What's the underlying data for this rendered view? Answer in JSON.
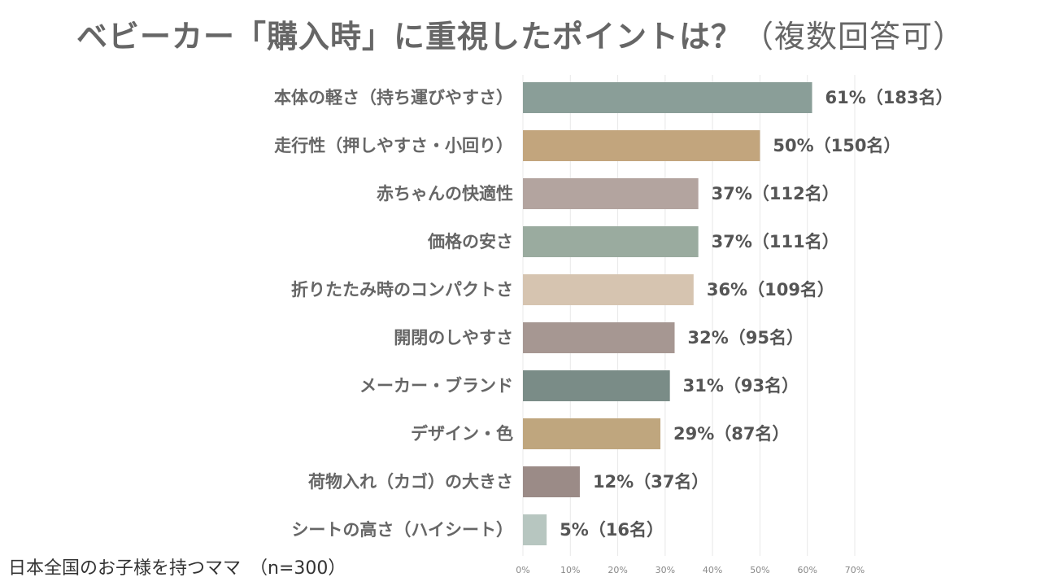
{
  "title": {
    "main": "ベビーカー「購入時」に重視したポイントは？",
    "sub": "（複数回答可）"
  },
  "footnote": "日本全国のお子様を持つママ　（n=300）",
  "colors": {
    "bars": [
      "#8a9e98",
      "#c2a57d",
      "#b3a49f",
      "#9aab9f",
      "#d6c4b0",
      "#a69792",
      "#7a8c87",
      "#bfa67e",
      "#9b8b87",
      "#b7c6c0"
    ],
    "grid": "#e8e8e8",
    "axis_text": "#888888"
  },
  "chart_data": {
    "type": "bar",
    "orientation": "horizontal",
    "title": "ベビーカー「購入時」に重視したポイントは？（複数回答可）",
    "categories": [
      "本体の軽さ（持ち運びやすさ）",
      "走行性（押しやすさ・小回り）",
      "赤ちゃんの快適性",
      "価格の安さ",
      "折りたたみ時のコンパクトさ",
      "開閉のしやすさ",
      "メーカー・ブランド",
      "デザイン・色",
      "荷物入れ（カゴ）の大きさ",
      "シートの高さ（ハイシート）"
    ],
    "values": [
      61,
      50,
      37,
      37,
      36,
      32,
      31,
      29,
      12,
      5
    ],
    "value_labels": [
      "61%（183名）",
      "50%（150名）",
      "37%（112名）",
      "37%（111名）",
      "36%（109名）",
      "32%（95名）",
      "31%（93名）",
      "29%（87名）",
      "12%（37名）",
      "5%（16名）"
    ],
    "xlim": [
      0,
      70
    ],
    "xticks": [
      "0%",
      "10%",
      "20%",
      "30%",
      "40%",
      "50%",
      "60%",
      "70%"
    ],
    "xlabel": "",
    "ylabel": "",
    "grid": true
  }
}
